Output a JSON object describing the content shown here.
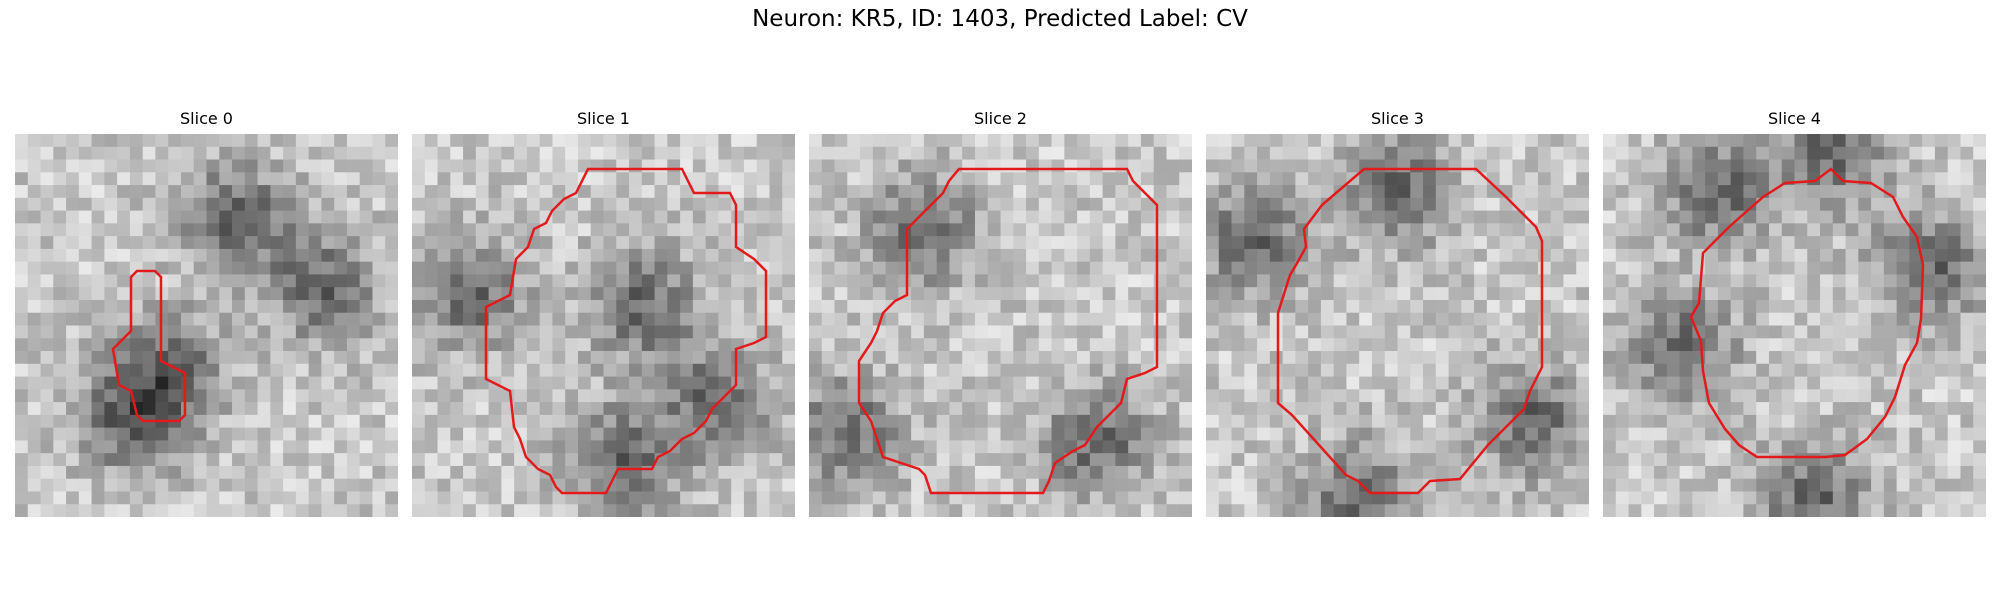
{
  "figure": {
    "title": "Neuron: KR5, ID: 1403, Predicted Label: CV"
  },
  "slices": [
    {
      "label": "Slice 0",
      "dark_centers": [
        [
          0.58,
          0.22
        ],
        [
          0.4,
          0.62
        ],
        [
          0.8,
          0.4
        ],
        [
          0.3,
          0.75
        ]
      ]
    },
    {
      "label": "Slice 1",
      "dark_centers": [
        [
          0.15,
          0.42
        ],
        [
          0.6,
          0.45
        ],
        [
          0.55,
          0.85
        ],
        [
          0.8,
          0.7
        ]
      ]
    },
    {
      "label": "Slice 2",
      "dark_centers": [
        [
          0.1,
          0.78
        ],
        [
          0.3,
          0.25
        ],
        [
          0.75,
          0.8
        ]
      ]
    },
    {
      "label": "Slice 3",
      "dark_centers": [
        [
          0.12,
          0.28
        ],
        [
          0.5,
          0.15
        ],
        [
          0.85,
          0.75
        ],
        [
          0.4,
          0.95
        ]
      ]
    },
    {
      "label": "Slice 4",
      "dark_centers": [
        [
          0.3,
          0.15
        ],
        [
          0.2,
          0.55
        ],
        [
          0.55,
          0.95
        ],
        [
          0.85,
          0.35
        ],
        [
          0.6,
          0.05
        ]
      ]
    }
  ],
  "colors": {
    "contour": "#e31a1c"
  }
}
